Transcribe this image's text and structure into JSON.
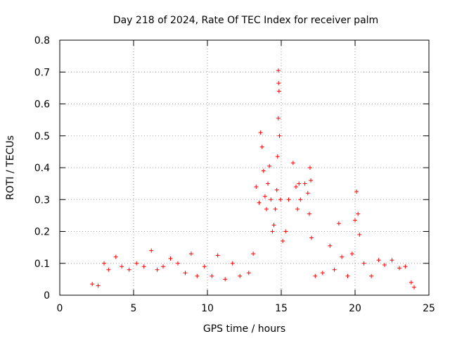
{
  "chart_data": {
    "type": "scatter",
    "title": "Day 218 of 2024, Rate Of TEC Index for receiver palm",
    "xlabel": "GPS time / hours",
    "ylabel": "ROTI / TECUs",
    "xlim": [
      0,
      25
    ],
    "ylim": [
      0,
      0.8
    ],
    "xticks": [
      0,
      5,
      10,
      15,
      20,
      25
    ],
    "yticks": [
      0,
      0.1,
      0.2,
      0.3,
      0.4,
      0.5,
      0.6,
      0.7,
      0.8
    ],
    "xtick_labels": [
      "0",
      "5",
      "10",
      "15",
      "20",
      "25"
    ],
    "ytick_labels": [
      "0",
      "0.1",
      "0.2",
      "0.3",
      "0.4",
      "0.5",
      "0.6",
      "0.7",
      "0.8"
    ],
    "grid": true,
    "marker": "plus",
    "color": "#ff0000",
    "series": [
      {
        "name": "ROTI",
        "points": [
          [
            2.2,
            0.035
          ],
          [
            2.6,
            0.03
          ],
          [
            3.0,
            0.1
          ],
          [
            3.3,
            0.08
          ],
          [
            3.8,
            0.12
          ],
          [
            4.2,
            0.09
          ],
          [
            4.7,
            0.08
          ],
          [
            5.2,
            0.1
          ],
          [
            5.7,
            0.09
          ],
          [
            6.2,
            0.14
          ],
          [
            6.6,
            0.08
          ],
          [
            7.0,
            0.09
          ],
          [
            7.5,
            0.115
          ],
          [
            8.0,
            0.1
          ],
          [
            8.5,
            0.07
          ],
          [
            8.9,
            0.13
          ],
          [
            9.3,
            0.06
          ],
          [
            9.8,
            0.09
          ],
          [
            10.3,
            0.06
          ],
          [
            10.7,
            0.125
          ],
          [
            11.2,
            0.05
          ],
          [
            11.7,
            0.1
          ],
          [
            12.2,
            0.06
          ],
          [
            12.8,
            0.07
          ],
          [
            13.1,
            0.13
          ],
          [
            13.3,
            0.34
          ],
          [
            13.5,
            0.29
          ],
          [
            13.6,
            0.51
          ],
          [
            13.7,
            0.465
          ],
          [
            13.8,
            0.39
          ],
          [
            13.9,
            0.31
          ],
          [
            14.0,
            0.27
          ],
          [
            14.1,
            0.35
          ],
          [
            14.2,
            0.405
          ],
          [
            14.3,
            0.3
          ],
          [
            14.4,
            0.2
          ],
          [
            14.5,
            0.22
          ],
          [
            14.6,
            0.27
          ],
          [
            14.7,
            0.33
          ],
          [
            14.75,
            0.435
          ],
          [
            14.8,
            0.705
          ],
          [
            14.82,
            0.665
          ],
          [
            14.85,
            0.64
          ],
          [
            14.8,
            0.555
          ],
          [
            14.88,
            0.5
          ],
          [
            14.95,
            0.3
          ],
          [
            15.1,
            0.17
          ],
          [
            15.3,
            0.2
          ],
          [
            15.5,
            0.3
          ],
          [
            15.8,
            0.415
          ],
          [
            16.0,
            0.34
          ],
          [
            16.1,
            0.27
          ],
          [
            16.2,
            0.35
          ],
          [
            16.3,
            0.3
          ],
          [
            16.6,
            0.35
          ],
          [
            16.8,
            0.32
          ],
          [
            16.95,
            0.4
          ],
          [
            17.0,
            0.36
          ],
          [
            16.9,
            0.255
          ],
          [
            17.05,
            0.18
          ],
          [
            17.3,
            0.06
          ],
          [
            17.8,
            0.07
          ],
          [
            18.3,
            0.155
          ],
          [
            18.6,
            0.08
          ],
          [
            18.9,
            0.225
          ],
          [
            19.1,
            0.12
          ],
          [
            19.5,
            0.06
          ],
          [
            19.8,
            0.13
          ],
          [
            20.0,
            0.235
          ],
          [
            20.1,
            0.325
          ],
          [
            20.2,
            0.255
          ],
          [
            20.3,
            0.19
          ],
          [
            20.6,
            0.1
          ],
          [
            21.1,
            0.06
          ],
          [
            21.6,
            0.11
          ],
          [
            22.0,
            0.095
          ],
          [
            22.5,
            0.11
          ],
          [
            23.0,
            0.085
          ],
          [
            23.4,
            0.09
          ],
          [
            23.8,
            0.04
          ],
          [
            24.0,
            0.025
          ]
        ]
      }
    ]
  }
}
